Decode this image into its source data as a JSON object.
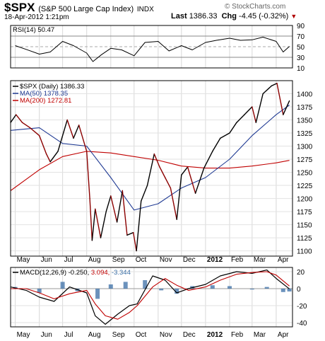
{
  "header": {
    "symbol": "$SPX",
    "name": "(S&P 500 Large Cap Index)",
    "exchange": "INDX",
    "date": "18-Apr-2012 1:21pm",
    "last_label": "Last",
    "last_value": "1386.33",
    "chg_label": "Chg",
    "chg_value": "-4.45 (-0.32%)",
    "chg_arrow": "▼",
    "watermark": "© StockCharts.com"
  },
  "colors": {
    "price": "#000000",
    "down_price": "#8b0000",
    "ma50": "#1f3a93",
    "ma200": "#c00000",
    "macd_signal": "#c00000",
    "hist": "#3a6ea5"
  },
  "chart_data": [
    {
      "type": "line",
      "panel": "rsi",
      "legend": "RSI(14) 50.47",
      "ylim": [
        10,
        90
      ],
      "yticks": [
        90,
        70,
        50,
        30,
        10
      ],
      "reference_lines": [
        70,
        30
      ],
      "series": [
        {
          "name": "RSI(14)",
          "x": [
            "2011-05-01",
            "2011-05-15",
            "2011-06-01",
            "2011-06-15",
            "2011-07-01",
            "2011-07-15",
            "2011-08-01",
            "2011-08-09",
            "2011-08-20",
            "2011-09-01",
            "2011-09-15",
            "2011-10-01",
            "2011-10-15",
            "2011-11-01",
            "2011-11-15",
            "2011-12-01",
            "2011-12-15",
            "2012-01-01",
            "2012-01-15",
            "2012-02-01",
            "2012-02-15",
            "2012-03-01",
            "2012-03-15",
            "2012-04-01",
            "2012-04-10",
            "2012-04-18"
          ],
          "values": [
            52,
            45,
            36,
            40,
            60,
            52,
            38,
            22,
            35,
            47,
            44,
            33,
            58,
            60,
            42,
            52,
            44,
            58,
            62,
            66,
            62,
            63,
            68,
            60,
            40,
            50.47
          ]
        }
      ]
    },
    {
      "type": "line",
      "panel": "price",
      "legend": [
        "$SPX (Daily) 1386.33",
        "MA(50) 1378.35",
        "MA(200) 1272.81"
      ],
      "ylim": [
        1090,
        1425
      ],
      "yticks": [
        1400,
        1375,
        1350,
        1325,
        1300,
        1275,
        1250,
        1225,
        1200,
        1175,
        1150,
        1125,
        1100
      ],
      "x_ticks": [
        "May",
        "Jun",
        "Jul",
        "Aug",
        "Sep",
        "Oct",
        "Nov",
        "Dec",
        "2012",
        "Feb",
        "Mar",
        "Apr"
      ],
      "x_tick_dates": [
        "2011-05-01",
        "2011-06-01",
        "2011-07-01",
        "2011-08-01",
        "2011-09-01",
        "2011-10-01",
        "2011-11-01",
        "2011-12-01",
        "2012-01-01",
        "2012-02-01",
        "2012-03-01",
        "2012-04-01"
      ],
      "x_range": [
        "2011-04-25",
        "2012-04-22"
      ],
      "series": [
        {
          "name": "$SPX (Daily)",
          "x": [
            "2011-04-25",
            "2011-05-02",
            "2011-05-10",
            "2011-05-20",
            "2011-06-01",
            "2011-06-10",
            "2011-06-15",
            "2011-06-25",
            "2011-07-07",
            "2011-07-15",
            "2011-07-22",
            "2011-08-01",
            "2011-08-05",
            "2011-08-08",
            "2011-08-12",
            "2011-08-19",
            "2011-08-26",
            "2011-09-01",
            "2011-09-09",
            "2011-09-16",
            "2011-09-22",
            "2011-09-30",
            "2011-10-04",
            "2011-10-10",
            "2011-10-18",
            "2011-10-27",
            "2011-11-03",
            "2011-11-10",
            "2011-11-17",
            "2011-11-25",
            "2011-12-01",
            "2011-12-09",
            "2011-12-19",
            "2011-12-30",
            "2012-01-10",
            "2012-01-20",
            "2012-02-01",
            "2012-02-10",
            "2012-02-20",
            "2012-03-01",
            "2012-03-06",
            "2012-03-15",
            "2012-03-26",
            "2012-04-02",
            "2012-04-10",
            "2012-04-18"
          ],
          "values": [
            1345,
            1360,
            1345,
            1335,
            1320,
            1285,
            1270,
            1290,
            1350,
            1315,
            1340,
            1290,
            1200,
            1120,
            1180,
            1125,
            1175,
            1205,
            1155,
            1215,
            1130,
            1135,
            1100,
            1195,
            1225,
            1285,
            1260,
            1240,
            1220,
            1160,
            1245,
            1260,
            1210,
            1258,
            1290,
            1315,
            1325,
            1345,
            1360,
            1375,
            1345,
            1400,
            1415,
            1420,
            1360,
            1386.33
          ]
        },
        {
          "name": "MA(50)",
          "x": [
            "2011-04-25",
            "2011-06-01",
            "2011-07-01",
            "2011-08-01",
            "2011-09-01",
            "2011-10-01",
            "2011-11-01",
            "2011-12-01",
            "2012-01-01",
            "2012-02-01",
            "2012-03-01",
            "2012-04-01",
            "2012-04-18"
          ],
          "values": [
            1330,
            1335,
            1305,
            1300,
            1240,
            1178,
            1190,
            1220,
            1240,
            1275,
            1320,
            1360,
            1378.35
          ]
        },
        {
          "name": "MA(200)",
          "x": [
            "2011-04-25",
            "2011-06-01",
            "2011-07-01",
            "2011-08-01",
            "2011-09-01",
            "2011-10-01",
            "2011-11-01",
            "2011-12-01",
            "2012-01-01",
            "2012-02-01",
            "2012-03-01",
            "2012-04-01",
            "2012-04-18"
          ],
          "values": [
            1215,
            1255,
            1280,
            1290,
            1287,
            1280,
            1273,
            1262,
            1258,
            1258,
            1262,
            1268,
            1272.81
          ]
        }
      ]
    },
    {
      "type": "line",
      "panel": "macd",
      "legend": [
        "MACD(12,26,9) -0.250,",
        "3.094,",
        "-3.344"
      ],
      "ylim": [
        -45,
        25
      ],
      "yticks": [
        20,
        0,
        -20,
        -40
      ],
      "x_ticks": [
        "May",
        "Jun",
        "Jul",
        "Aug",
        "Sep",
        "Oct",
        "Nov",
        "Dec",
        "2012",
        "Feb",
        "Mar",
        "Apr"
      ],
      "series": [
        {
          "name": "MACD",
          "x": [
            "2011-04-25",
            "2011-05-15",
            "2011-06-01",
            "2011-06-20",
            "2011-07-10",
            "2011-08-01",
            "2011-08-12",
            "2011-08-25",
            "2011-09-10",
            "2011-09-25",
            "2011-10-05",
            "2011-10-25",
            "2011-11-10",
            "2011-11-25",
            "2011-12-10",
            "2012-01-01",
            "2012-01-20",
            "2012-02-10",
            "2012-03-01",
            "2012-03-20",
            "2012-04-01",
            "2012-04-18"
          ],
          "values": [
            2,
            -2,
            -10,
            -15,
            2,
            -5,
            -32,
            -42,
            -30,
            -20,
            -18,
            15,
            10,
            -5,
            0,
            5,
            15,
            20,
            18,
            22,
            12,
            -0.25
          ]
        },
        {
          "name": "Signal",
          "x": [
            "2011-04-25",
            "2011-05-15",
            "2011-06-01",
            "2011-06-20",
            "2011-07-10",
            "2011-08-01",
            "2011-08-12",
            "2011-08-25",
            "2011-09-10",
            "2011-09-25",
            "2011-10-05",
            "2011-10-25",
            "2011-11-10",
            "2011-11-25",
            "2011-12-10",
            "2012-01-01",
            "2012-01-20",
            "2012-02-10",
            "2012-03-01",
            "2012-03-20",
            "2012-04-01",
            "2012-04-18"
          ],
          "values": [
            0,
            0,
            -5,
            -12,
            -6,
            -2,
            -18,
            -32,
            -36,
            -28,
            -20,
            2,
            12,
            4,
            -2,
            2,
            10,
            17,
            19,
            20,
            16,
            3.094
          ]
        },
        {
          "name": "Histogram",
          "x": [
            "2011-05-01",
            "2011-06-01",
            "2011-07-01",
            "2011-07-20",
            "2011-08-15",
            "2011-09-01",
            "2011-09-20",
            "2011-10-15",
            "2011-11-05",
            "2011-11-25",
            "2011-12-15",
            "2012-01-10",
            "2012-02-01",
            "2012-03-01",
            "2012-03-20",
            "2012-04-10",
            "2012-04-18"
          ],
          "values": [
            2,
            -5,
            8,
            -3,
            -12,
            5,
            8,
            10,
            -2,
            -6,
            3,
            4,
            3,
            -1,
            2,
            -4,
            -3.344
          ]
        }
      ]
    }
  ]
}
